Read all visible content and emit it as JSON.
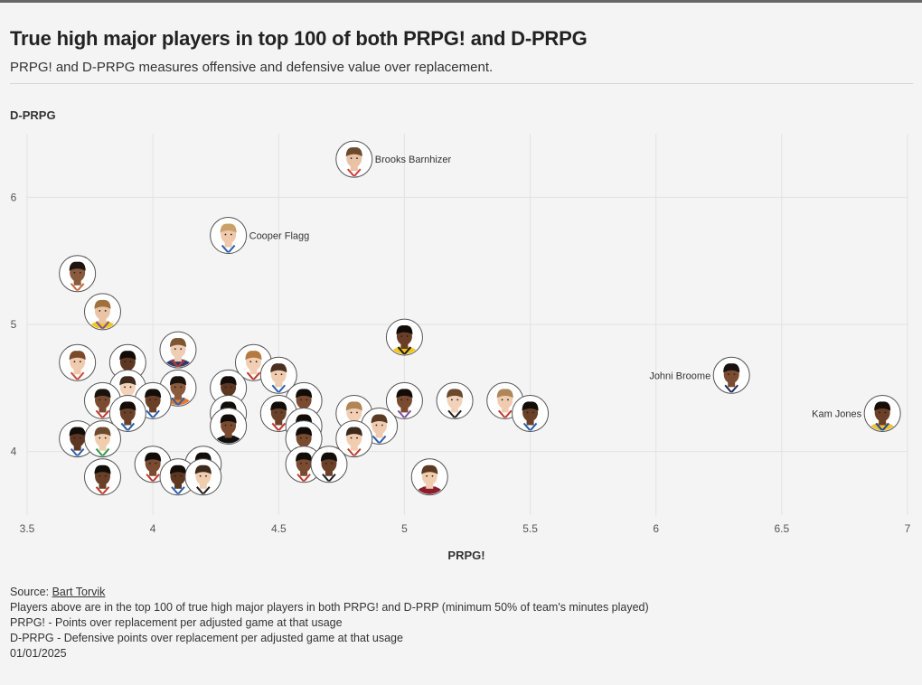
{
  "header": {
    "title": "True high major players in top 100 of both PRPG! and D-PRPG",
    "subtitle": "PRPG! and D-PRPG measures offensive and defensive value over replacement."
  },
  "footer": {
    "source_label": "Source:",
    "source_link": "Bart Torvik",
    "note1": "Players above are in the top 100 of true high major players in both PRPG! and D-PRP (minimum 50% of team's minutes played)",
    "note2": "PRPG! - Points over replacement per adjusted game at that usage",
    "note3": "D-PRPG - Defensive points over replacement per adjusted game at that usage",
    "date": "01/01/2025"
  },
  "chart_data": {
    "type": "scatter",
    "title": "True high major players in top 100 of both PRPG! and D-PRPG",
    "xlabel": "PRPG!",
    "ylabel": "D-PRPG",
    "xlim": [
      3.5,
      7
    ],
    "ylim": [
      3.5,
      6.5
    ],
    "xticks": [
      "3.5",
      "4",
      "4.5",
      "5",
      "5.5",
      "6",
      "6.5",
      "7"
    ],
    "yticks": [
      "4",
      "5",
      "6"
    ],
    "grid": true,
    "points": [
      {
        "x": 4.8,
        "y": 6.3,
        "label": "Brooks Barnhizer",
        "skin": "#e9c2a6",
        "hair": "#6b4a2e",
        "shirt": "#ffffff",
        "trim": "#d23b3b"
      },
      {
        "x": 4.3,
        "y": 5.7,
        "label": "Cooper Flagg",
        "skin": "#f0c8ab",
        "hair": "#c9a26b",
        "shirt": "#ffffff",
        "trim": "#2a5fb0"
      },
      {
        "x": 3.7,
        "y": 5.4,
        "label": "",
        "skin": "#8a5a3c",
        "hair": "#1e1410",
        "shirt": "#ffffff",
        "trim": "#c8663a"
      },
      {
        "x": 3.8,
        "y": 5.1,
        "label": "",
        "skin": "#eac4a4",
        "hair": "#a0703e",
        "shirt": "#f2c81f",
        "trim": "#7a4fa0"
      },
      {
        "x": 5.0,
        "y": 4.9,
        "label": "",
        "skin": "#6a3e26",
        "hair": "#120c08",
        "shirt": "#f2c81f",
        "trim": "#1b1b1b"
      },
      {
        "x": 6.3,
        "y": 4.6,
        "label": "Johni Broome",
        "skin": "#7b4b32",
        "hair": "#181210",
        "shirt": "#ffffff",
        "trim": "#1c2b56"
      },
      {
        "x": 6.9,
        "y": 4.3,
        "label": "Kam Jones",
        "skin": "#6c3f27",
        "hair": "#150e0a",
        "shirt": "#f1c232",
        "trim": "#1d4c9a"
      },
      {
        "x": 3.7,
        "y": 4.7,
        "label": "",
        "skin": "#f0cbb0",
        "hair": "#7a4a2a",
        "shirt": "#ffffff",
        "trim": "#d4483c"
      },
      {
        "x": 3.9,
        "y": 4.7,
        "label": "",
        "skin": "#5e3722",
        "hair": "#120c08",
        "shirt": "#ffffff",
        "trim": "#8b1d1d"
      },
      {
        "x": 4.1,
        "y": 4.8,
        "label": "",
        "skin": "#efcdb4",
        "hair": "#7a5633",
        "shirt": "#2f3c6b",
        "trim": "#c0392b"
      },
      {
        "x": 4.4,
        "y": 4.7,
        "label": "",
        "skin": "#f2cfb4",
        "hair": "#b57a42",
        "shirt": "#ffffff",
        "trim": "#c0392b"
      },
      {
        "x": 4.5,
        "y": 4.6,
        "label": "",
        "skin": "#f1cdb0",
        "hair": "#4a3020",
        "shirt": "#ffffff",
        "trim": "#2a5fb0"
      },
      {
        "x": 4.1,
        "y": 4.5,
        "label": "",
        "skin": "#8a5a3c",
        "hair": "#1a120d",
        "shirt": "#e8792b",
        "trim": "#2a5fb0"
      },
      {
        "x": 3.8,
        "y": 4.4,
        "label": "",
        "skin": "#7a4b30",
        "hair": "#1a120d",
        "shirt": "#ffffff",
        "trim": "#c0392b"
      },
      {
        "x": 3.9,
        "y": 4.5,
        "label": "",
        "skin": "#f2d2b8",
        "hair": "#3d2a1d",
        "shirt": "#ffffff",
        "trim": "#2a5fb0"
      },
      {
        "x": 4.0,
        "y": 4.4,
        "label": "",
        "skin": "#6a4028",
        "hair": "#140e0a",
        "shirt": "#ffffff",
        "trim": "#2a5fb0"
      },
      {
        "x": 4.3,
        "y": 4.5,
        "label": "",
        "skin": "#5e3722",
        "hair": "#130d09",
        "shirt": "#ffffff",
        "trim": "#2a5fb0"
      },
      {
        "x": 4.3,
        "y": 4.3,
        "label": "",
        "skin": "#6a4028",
        "hair": "#130d09",
        "shirt": "#ffffff",
        "trim": "#1b1b1b"
      },
      {
        "x": 4.3,
        "y": 4.2,
        "label": "",
        "skin": "#7a4b30",
        "hair": "#130d09",
        "shirt": "#111111",
        "trim": "#111111"
      },
      {
        "x": 4.5,
        "y": 4.3,
        "label": "",
        "skin": "#6a4028",
        "hair": "#130d09",
        "shirt": "#ffffff",
        "trim": "#c0392b"
      },
      {
        "x": 4.6,
        "y": 4.4,
        "label": "",
        "skin": "#7a4b30",
        "hair": "#130d09",
        "shirt": "#ffffff",
        "trim": "#c0392b"
      },
      {
        "x": 4.6,
        "y": 4.2,
        "label": "",
        "skin": "#6a4028",
        "hair": "#130d09",
        "shirt": "#ffffff",
        "trim": "#c0392b"
      },
      {
        "x": 4.6,
        "y": 4.1,
        "label": "",
        "skin": "#7a4b30",
        "hair": "#130d09",
        "shirt": "#ffffff",
        "trim": "#1b1b1b"
      },
      {
        "x": 3.9,
        "y": 4.3,
        "label": "",
        "skin": "#6a4028",
        "hair": "#130d09",
        "shirt": "#ffffff",
        "trim": "#2a5fb0"
      },
      {
        "x": 3.7,
        "y": 4.1,
        "label": "",
        "skin": "#5e3722",
        "hair": "#130d09",
        "shirt": "#ffffff",
        "trim": "#2a5fb0"
      },
      {
        "x": 3.8,
        "y": 4.1,
        "label": "",
        "skin": "#f1cdb0",
        "hair": "#6b4a2e",
        "shirt": "#ffffff",
        "trim": "#2e9a48"
      },
      {
        "x": 3.8,
        "y": 3.8,
        "label": "",
        "skin": "#6a4028",
        "hair": "#130d09",
        "shirt": "#ffffff",
        "trim": "#c0392b"
      },
      {
        "x": 4.0,
        "y": 3.9,
        "label": "",
        "skin": "#7a4b30",
        "hair": "#130d09",
        "shirt": "#ffffff",
        "trim": "#c0392b"
      },
      {
        "x": 4.1,
        "y": 3.8,
        "label": "",
        "skin": "#5e3722",
        "hair": "#130d09",
        "shirt": "#ffffff",
        "trim": "#2a5fb0"
      },
      {
        "x": 4.2,
        "y": 3.9,
        "label": "",
        "skin": "#6a4028",
        "hair": "#130d09",
        "shirt": "#ffffff",
        "trim": "#c0392b"
      },
      {
        "x": 4.2,
        "y": 3.8,
        "label": "",
        "skin": "#f1cdb0",
        "hair": "#3d2a1d",
        "shirt": "#ffffff",
        "trim": "#1b1b1b"
      },
      {
        "x": 4.6,
        "y": 3.9,
        "label": "",
        "skin": "#7a4b30",
        "hair": "#130d09",
        "shirt": "#ffffff",
        "trim": "#c0392b"
      },
      {
        "x": 4.7,
        "y": 3.9,
        "label": "",
        "skin": "#6a4028",
        "hair": "#130d09",
        "shirt": "#ffffff",
        "trim": "#1b1b1b"
      },
      {
        "x": 4.8,
        "y": 4.3,
        "label": "",
        "skin": "#f2cfb4",
        "hair": "#b08656",
        "shirt": "#ffffff",
        "trim": "#2a5fb0"
      },
      {
        "x": 4.8,
        "y": 4.1,
        "label": "",
        "skin": "#f1cdb0",
        "hair": "#3d2a1d",
        "shirt": "#ffffff",
        "trim": "#c0392b"
      },
      {
        "x": 4.9,
        "y": 4.2,
        "label": "",
        "skin": "#f0cbb0",
        "hair": "#5a3a22",
        "shirt": "#ffffff",
        "trim": "#2a5fb0"
      },
      {
        "x": 5.0,
        "y": 4.4,
        "label": "",
        "skin": "#7a4b30",
        "hair": "#130d09",
        "shirt": "#ffffff",
        "trim": "#7a4fa0"
      },
      {
        "x": 5.2,
        "y": 4.4,
        "label": "",
        "skin": "#f2d2b8",
        "hair": "#6b4a2e",
        "shirt": "#ffffff",
        "trim": "#1b1b1b"
      },
      {
        "x": 5.4,
        "y": 4.4,
        "label": "",
        "skin": "#f0cbb0",
        "hair": "#b08656",
        "shirt": "#ffffff",
        "trim": "#c0392b"
      },
      {
        "x": 5.5,
        "y": 4.3,
        "label": "",
        "skin": "#6a4028",
        "hair": "#130d09",
        "shirt": "#ffffff",
        "trim": "#2a5fb0"
      },
      {
        "x": 5.1,
        "y": 3.8,
        "label": "",
        "skin": "#f1cdb0",
        "hair": "#5a3a22",
        "shirt": "#8b1d2c",
        "trim": "#8b1d2c"
      }
    ]
  }
}
